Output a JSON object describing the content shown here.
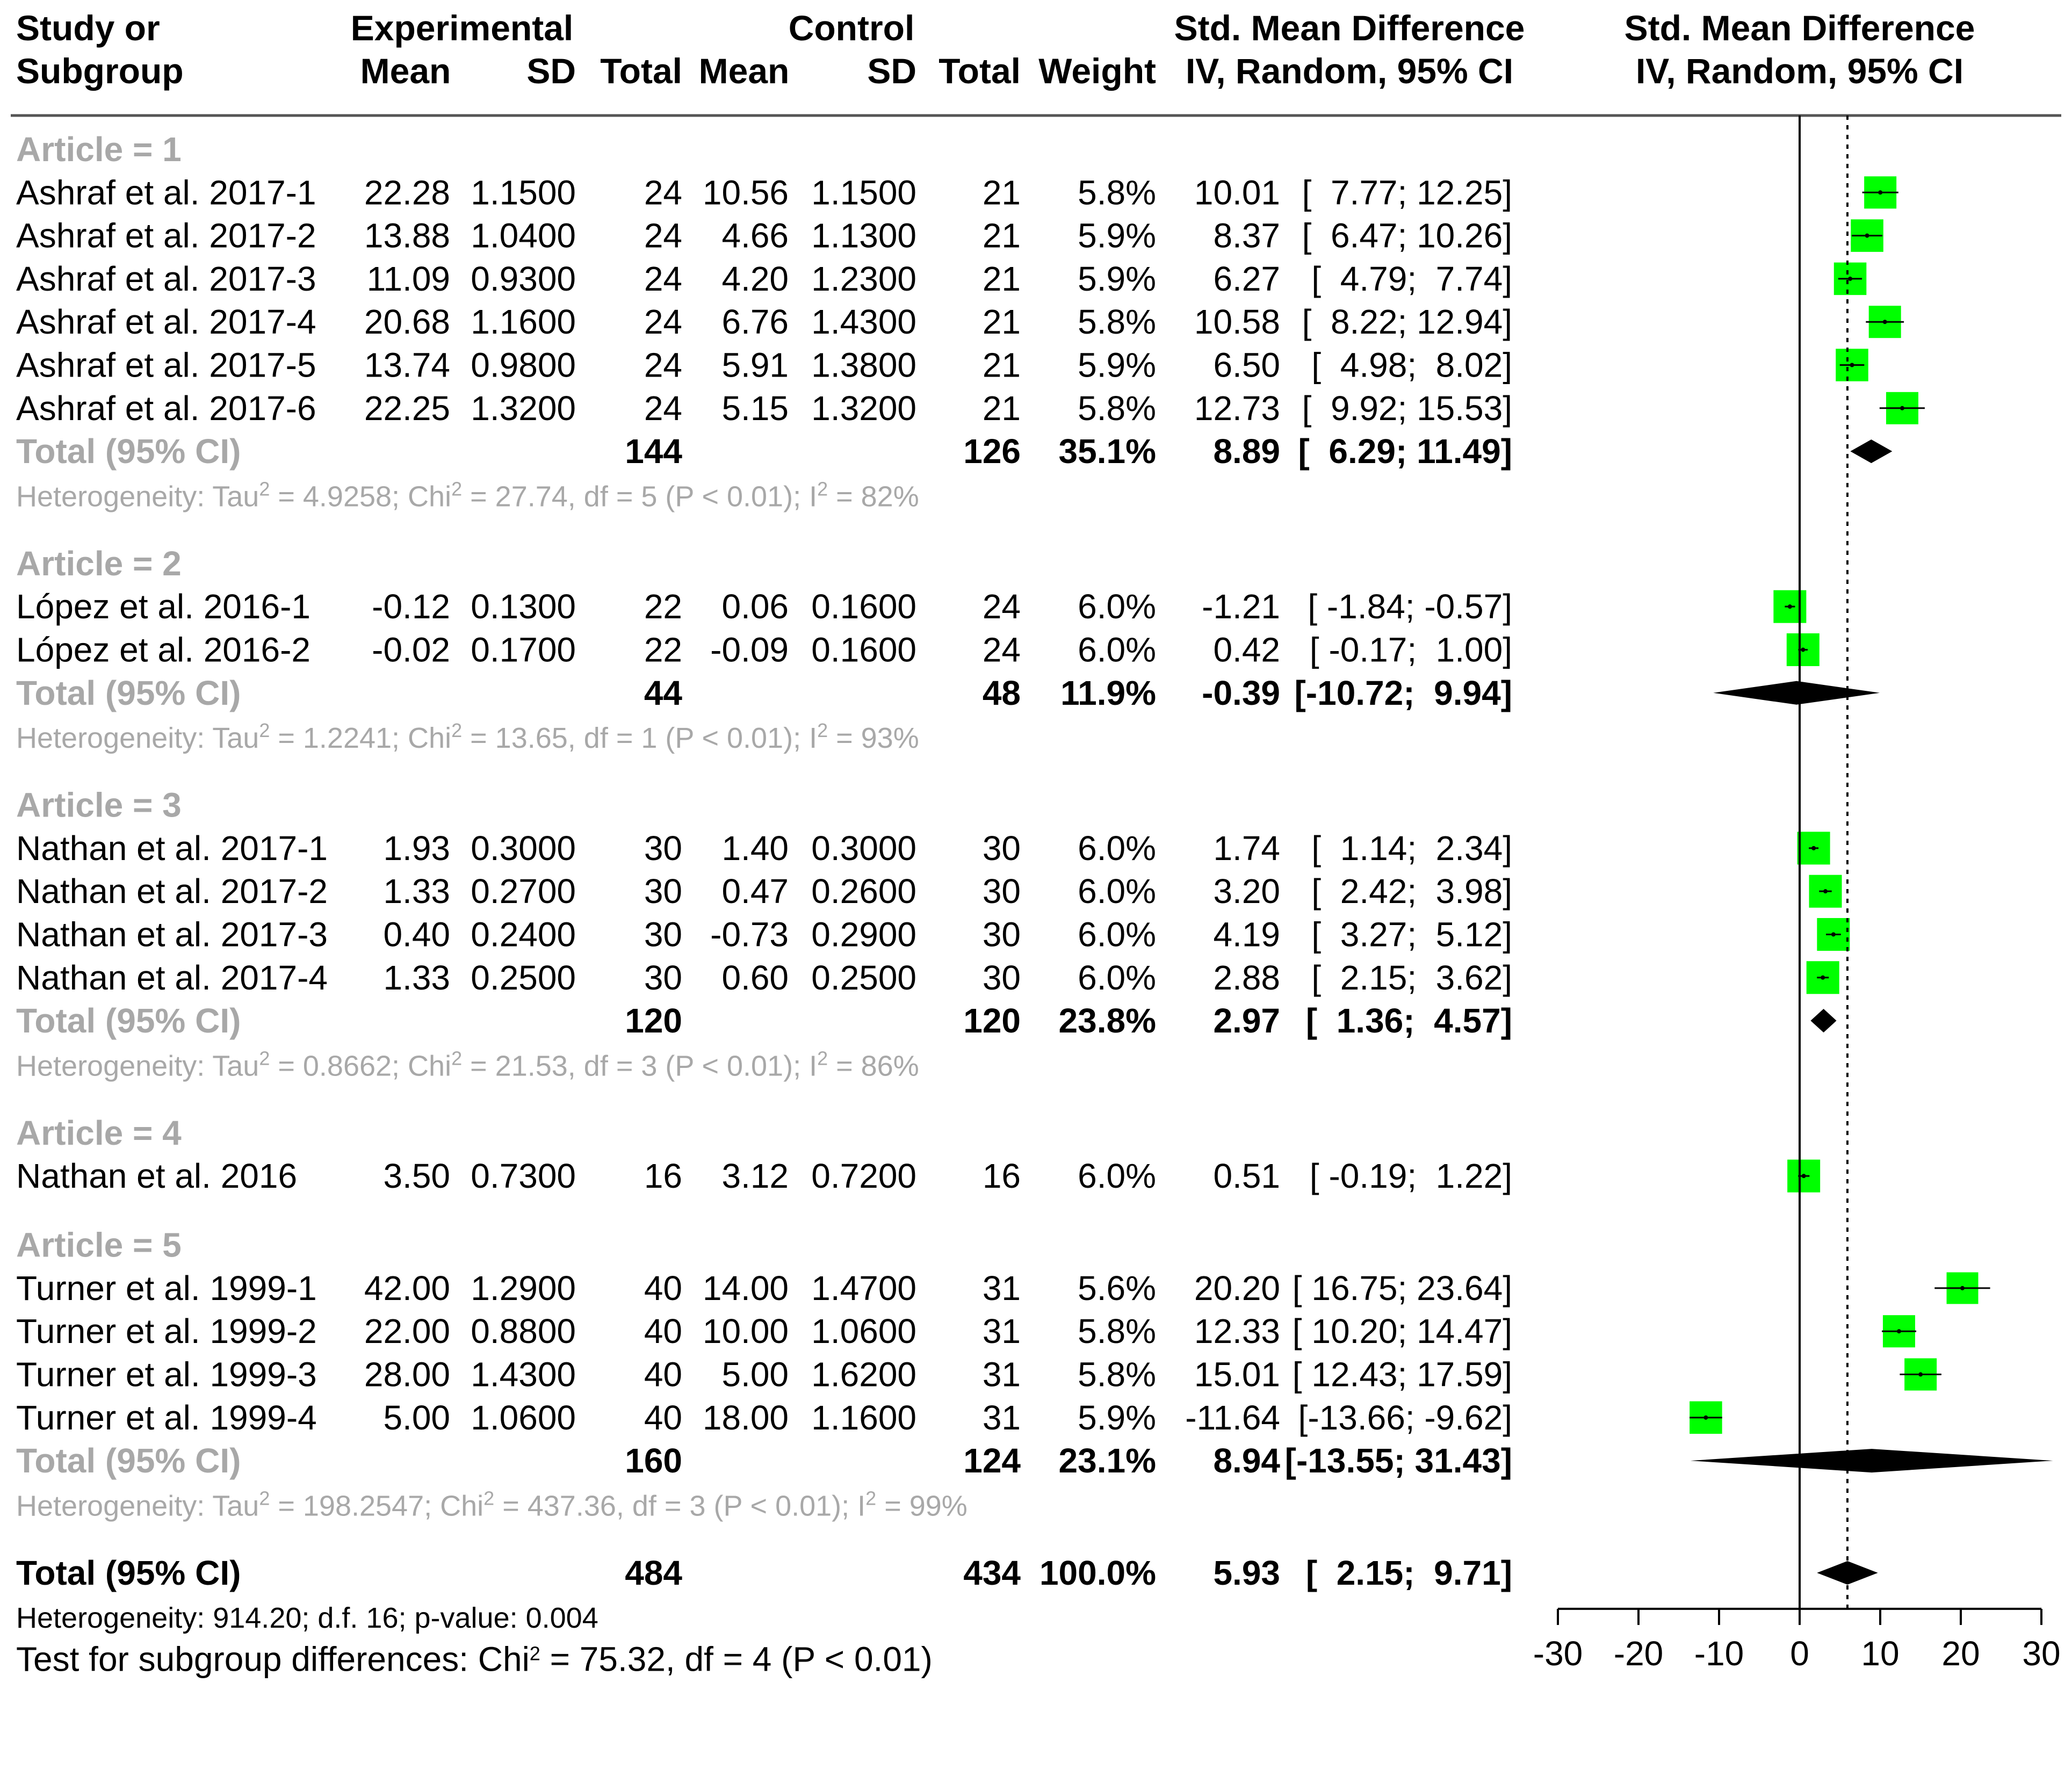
{
  "chart_data": {
    "type": "forest",
    "header": {
      "study_l1": "Study or",
      "study_l2": "Subgroup",
      "experimental": "Experimental",
      "control": "Control",
      "mean": "Mean",
      "sd": "SD",
      "total": "Total",
      "weight": "Weight",
      "smd_l1": "Std. Mean Difference",
      "smd_l2": "IV, Random, 95% CI",
      "plot_l1": "Std. Mean Difference",
      "plot_l2": "IV, Random, 95% CI"
    },
    "xaxis": {
      "min": -30,
      "max": 30,
      "ticks": [
        -30,
        -20,
        -10,
        0,
        10,
        20,
        30
      ],
      "tick_labels": [
        "-30",
        "-20",
        "-10",
        "0",
        "10",
        "20",
        "30"
      ],
      "overall_ref": 5.93
    },
    "groups": [
      {
        "label": "Article = 1",
        "studies": [
          {
            "name": "Ashraf et al. 2017-1",
            "e_mean": "22.28",
            "e_sd": "1.1500",
            "e_n": "24",
            "c_mean": "10.56",
            "c_sd": "1.1500",
            "c_n": "21",
            "weight": "5.8%",
            "est": "10.01",
            "ci_lo": "7.77",
            "ci_hi": "12.25",
            "smd": 10.01,
            "lo": 7.77,
            "hi": 12.25,
            "w": 5.8
          },
          {
            "name": "Ashraf et al. 2017-2",
            "e_mean": "13.88",
            "e_sd": "1.0400",
            "e_n": "24",
            "c_mean": "4.66",
            "c_sd": "1.1300",
            "c_n": "21",
            "weight": "5.9%",
            "est": "8.37",
            "ci_lo": "6.47",
            "ci_hi": "10.26",
            "smd": 8.37,
            "lo": 6.47,
            "hi": 10.26,
            "w": 5.9
          },
          {
            "name": "Ashraf et al. 2017-3",
            "e_mean": "11.09",
            "e_sd": "0.9300",
            "e_n": "24",
            "c_mean": "4.20",
            "c_sd": "1.2300",
            "c_n": "21",
            "weight": "5.9%",
            "est": "6.27",
            "ci_lo": "4.79",
            "ci_hi": "7.74",
            "smd": 6.27,
            "lo": 4.79,
            "hi": 7.74,
            "w": 5.9
          },
          {
            "name": "Ashraf et al. 2017-4",
            "e_mean": "20.68",
            "e_sd": "1.1600",
            "e_n": "24",
            "c_mean": "6.76",
            "c_sd": "1.4300",
            "c_n": "21",
            "weight": "5.8%",
            "est": "10.58",
            "ci_lo": "8.22",
            "ci_hi": "12.94",
            "smd": 10.58,
            "lo": 8.22,
            "hi": 12.94,
            "w": 5.8
          },
          {
            "name": "Ashraf et al. 2017-5",
            "e_mean": "13.74",
            "e_sd": "0.9800",
            "e_n": "24",
            "c_mean": "5.91",
            "c_sd": "1.3800",
            "c_n": "21",
            "weight": "5.9%",
            "est": "6.50",
            "ci_lo": "4.98",
            "ci_hi": "8.02",
            "smd": 6.5,
            "lo": 4.98,
            "hi": 8.02,
            "w": 5.9
          },
          {
            "name": "Ashraf et al. 2017-6",
            "e_mean": "22.25",
            "e_sd": "1.3200",
            "e_n": "24",
            "c_mean": "5.15",
            "c_sd": "1.3200",
            "c_n": "21",
            "weight": "5.8%",
            "est": "12.73",
            "ci_lo": "9.92",
            "ci_hi": "15.53",
            "smd": 12.73,
            "lo": 9.92,
            "hi": 15.53,
            "w": 5.8
          }
        ],
        "total": {
          "label": "Total (95% CI)",
          "e_n": "144",
          "c_n": "126",
          "weight": "35.1%",
          "est": "8.89",
          "ci_lo": "6.29",
          "ci_hi": "11.49",
          "smd": 8.89,
          "lo": 6.29,
          "hi": 11.49
        },
        "heterogeneity": {
          "prefix": "Heterogeneity: Tau",
          "tau2_sup": "2",
          "mid": " = 4.9258; Chi",
          "chi2_sup": "2",
          "rest": " = 27.74, df = 5 (P < 0.01); I",
          "i2_sup": "2",
          "tail": " = 82%"
        }
      },
      {
        "label": "Article = 2",
        "studies": [
          {
            "name": "López et al. 2016-1",
            "e_mean": "-0.12",
            "e_sd": "0.1300",
            "e_n": "22",
            "c_mean": "0.06",
            "c_sd": "0.1600",
            "c_n": "24",
            "weight": "6.0%",
            "est": "-1.21",
            "ci_lo": "-1.84",
            "ci_hi": "-0.57",
            "smd": -1.21,
            "lo": -1.84,
            "hi": -0.57,
            "w": 6.0
          },
          {
            "name": "López et al. 2016-2",
            "e_mean": "-0.02",
            "e_sd": "0.1700",
            "e_n": "22",
            "c_mean": "-0.09",
            "c_sd": "0.1600",
            "c_n": "24",
            "weight": "6.0%",
            "est": "0.42",
            "ci_lo": "-0.17",
            "ci_hi": "1.00",
            "smd": 0.42,
            "lo": -0.17,
            "hi": 1.0,
            "w": 6.0
          }
        ],
        "total": {
          "label": "Total (95% CI)",
          "e_n": "44",
          "c_n": "48",
          "weight": "11.9%",
          "est": "-0.39",
          "ci_lo": "-10.72",
          "ci_hi": "9.94",
          "smd": -0.39,
          "lo": -10.72,
          "hi": 9.94
        },
        "heterogeneity": {
          "prefix": "Heterogeneity: Tau",
          "tau2_sup": "2",
          "mid": " = 1.2241; Chi",
          "chi2_sup": "2",
          "rest": " = 13.65, df = 1 (P < 0.01); I",
          "i2_sup": "2",
          "tail": " = 93%"
        }
      },
      {
        "label": "Article = 3",
        "studies": [
          {
            "name": "Nathan et al. 2017-1",
            "e_mean": "1.93",
            "e_sd": "0.3000",
            "e_n": "30",
            "c_mean": "1.40",
            "c_sd": "0.3000",
            "c_n": "30",
            "weight": "6.0%",
            "est": "1.74",
            "ci_lo": "1.14",
            "ci_hi": "2.34",
            "smd": 1.74,
            "lo": 1.14,
            "hi": 2.34,
            "w": 6.0
          },
          {
            "name": "Nathan et al. 2017-2",
            "e_mean": "1.33",
            "e_sd": "0.2700",
            "e_n": "30",
            "c_mean": "0.47",
            "c_sd": "0.2600",
            "c_n": "30",
            "weight": "6.0%",
            "est": "3.20",
            "ci_lo": "2.42",
            "ci_hi": "3.98",
            "smd": 3.2,
            "lo": 2.42,
            "hi": 3.98,
            "w": 6.0
          },
          {
            "name": "Nathan et al. 2017-3",
            "e_mean": "0.40",
            "e_sd": "0.2400",
            "e_n": "30",
            "c_mean": "-0.73",
            "c_sd": "0.2900",
            "c_n": "30",
            "weight": "6.0%",
            "est": "4.19",
            "ci_lo": "3.27",
            "ci_hi": "5.12",
            "smd": 4.19,
            "lo": 3.27,
            "hi": 5.12,
            "w": 6.0
          },
          {
            "name": "Nathan et al. 2017-4",
            "e_mean": "1.33",
            "e_sd": "0.2500",
            "e_n": "30",
            "c_mean": "0.60",
            "c_sd": "0.2500",
            "c_n": "30",
            "weight": "6.0%",
            "est": "2.88",
            "ci_lo": "2.15",
            "ci_hi": "3.62",
            "smd": 2.88,
            "lo": 2.15,
            "hi": 3.62,
            "w": 6.0
          }
        ],
        "total": {
          "label": "Total (95% CI)",
          "e_n": "120",
          "c_n": "120",
          "weight": "23.8%",
          "est": "2.97",
          "ci_lo": "1.36",
          "ci_hi": "4.57",
          "smd": 2.97,
          "lo": 1.36,
          "hi": 4.57
        },
        "heterogeneity": {
          "prefix": "Heterogeneity: Tau",
          "tau2_sup": "2",
          "mid": " = 0.8662; Chi",
          "chi2_sup": "2",
          "rest": " = 21.53, df = 3 (P < 0.01); I",
          "i2_sup": "2",
          "tail": " = 86%"
        }
      },
      {
        "label": "Article = 4",
        "studies": [
          {
            "name": "Nathan et al. 2016",
            "e_mean": "3.50",
            "e_sd": "0.7300",
            "e_n": "16",
            "c_mean": "3.12",
            "c_sd": "0.7200",
            "c_n": "16",
            "weight": "6.0%",
            "est": "0.51",
            "ci_lo": "-0.19",
            "ci_hi": "1.22",
            "smd": 0.51,
            "lo": -0.19,
            "hi": 1.22,
            "w": 6.0
          }
        ],
        "total": null,
        "heterogeneity": null
      },
      {
        "label": "Article = 5",
        "studies": [
          {
            "name": "Turner et al. 1999-1",
            "e_mean": "42.00",
            "e_sd": "1.2900",
            "e_n": "40",
            "c_mean": "14.00",
            "c_sd": "1.4700",
            "c_n": "31",
            "weight": "5.6%",
            "est": "20.20",
            "ci_lo": "16.75",
            "ci_hi": "23.64",
            "smd": 20.2,
            "lo": 16.75,
            "hi": 23.64,
            "w": 5.6
          },
          {
            "name": "Turner et al. 1999-2",
            "e_mean": "22.00",
            "e_sd": "0.8800",
            "e_n": "40",
            "c_mean": "10.00",
            "c_sd": "1.0600",
            "c_n": "31",
            "weight": "5.8%",
            "est": "12.33",
            "ci_lo": "10.20",
            "ci_hi": "14.47",
            "smd": 12.33,
            "lo": 10.2,
            "hi": 14.47,
            "w": 5.8
          },
          {
            "name": "Turner et al. 1999-3",
            "e_mean": "28.00",
            "e_sd": "1.4300",
            "e_n": "40",
            "c_mean": "5.00",
            "c_sd": "1.6200",
            "c_n": "31",
            "weight": "5.8%",
            "est": "15.01",
            "ci_lo": "12.43",
            "ci_hi": "17.59",
            "smd": 15.01,
            "lo": 12.43,
            "hi": 17.59,
            "w": 5.8
          },
          {
            "name": "Turner et al. 1999-4",
            "e_mean": "5.00",
            "e_sd": "1.0600",
            "e_n": "40",
            "c_mean": "18.00",
            "c_sd": "1.1600",
            "c_n": "31",
            "weight": "5.9%",
            "est": "-11.64",
            "ci_lo": "-13.66",
            "ci_hi": "-9.62",
            "smd": -11.64,
            "lo": -13.66,
            "hi": -9.62,
            "w": 5.9
          }
        ],
        "total": {
          "label": "Total (95% CI)",
          "e_n": "160",
          "c_n": "124",
          "weight": "23.1%",
          "est": "8.94",
          "ci_lo": "-13.55",
          "ci_hi": "31.43",
          "smd": 8.94,
          "lo": -13.55,
          "hi": 31.43
        },
        "heterogeneity": {
          "prefix": "Heterogeneity: Tau",
          "tau2_sup": "2",
          "mid": " = 198.2547; Chi",
          "chi2_sup": "2",
          "rest": " = 437.36, df = 3 (P < 0.01); I",
          "i2_sup": "2",
          "tail": " = 99%"
        }
      }
    ],
    "overall": {
      "label": "Total (95% CI)",
      "e_n": "484",
      "c_n": "434",
      "weight": "100.0%",
      "est": "5.93",
      "ci_lo": "2.15",
      "ci_hi": "9.71",
      "smd": 5.93,
      "lo": 2.15,
      "hi": 9.71
    },
    "overall_heterogeneity": "Heterogeneity: 914.20; d.f. 16; p-value: 0.004",
    "subgroup_test": {
      "prefix": "Test for subgroup differences: Chi",
      "sup": "2",
      "rest": " = 75.32, df = 4 (P < 0.01)"
    },
    "colors": {
      "box": "#00ff00",
      "diamond": "#000000",
      "grey_text": "#a8a8a8",
      "ci_line": "#000000"
    }
  }
}
